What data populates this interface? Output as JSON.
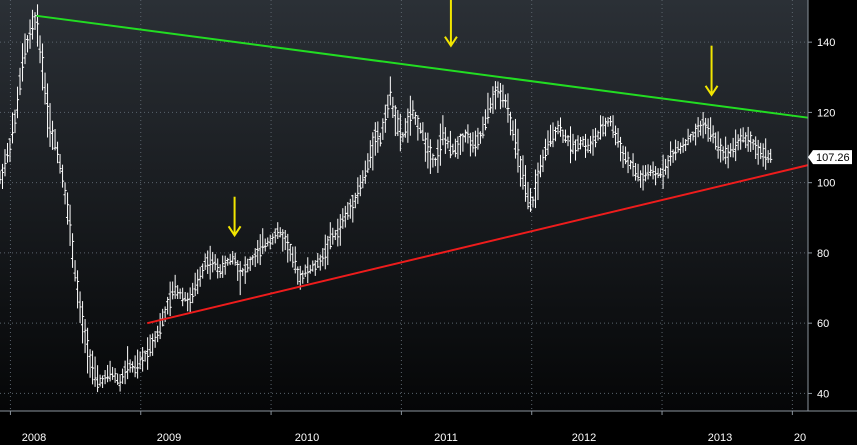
{
  "chart_data": {
    "type": "line",
    "style": "ohlc-bars",
    "title": "",
    "xlabel": "",
    "ylabel": "",
    "x_ticks": [
      "2008",
      "2009",
      "2010",
      "2011",
      "2012",
      "2013",
      "20"
    ],
    "y_ticks": [
      40,
      60,
      80,
      100,
      120,
      140
    ],
    "ylim": [
      35,
      152
    ],
    "xlim": [
      2007.92,
      2014.12
    ],
    "grid": true,
    "last_value": "107.26",
    "colors": {
      "background_top": "#2b3036",
      "background_bottom": "#050607",
      "grid": "#5a636c",
      "price": "#ffffff",
      "resistance": "#22dd22",
      "support": "#ee1c1c",
      "arrows": "#f2e600"
    },
    "series": [
      {
        "style": "ohlc",
        "points": [
          [
            2007.92,
            101
          ],
          [
            2007.98,
            108
          ],
          [
            2008.04,
            118
          ],
          [
            2008.09,
            133
          ],
          [
            2008.13,
            140
          ],
          [
            2008.17,
            145
          ],
          [
            2008.2,
            147
          ],
          [
            2008.23,
            138
          ],
          [
            2008.27,
            126
          ],
          [
            2008.31,
            115
          ],
          [
            2008.37,
            108
          ],
          [
            2008.42,
            98
          ],
          [
            2008.48,
            80
          ],
          [
            2008.54,
            62
          ],
          [
            2008.6,
            52
          ],
          [
            2008.66,
            43
          ],
          [
            2008.72,
            44
          ],
          [
            2008.78,
            46
          ],
          [
            2008.84,
            43
          ],
          [
            2008.9,
            48
          ],
          [
            2008.96,
            47
          ],
          [
            2009.02,
            50
          ],
          [
            2009.08,
            54
          ],
          [
            2009.14,
            58
          ],
          [
            2009.2,
            64
          ],
          [
            2009.26,
            70
          ],
          [
            2009.32,
            68
          ],
          [
            2009.38,
            66
          ],
          [
            2009.44,
            72
          ],
          [
            2009.5,
            78
          ],
          [
            2009.56,
            77
          ],
          [
            2009.62,
            75
          ],
          [
            2009.68,
            78
          ],
          [
            2009.72,
            79
          ],
          [
            2009.76,
            74
          ],
          [
            2009.82,
            76
          ],
          [
            2009.88,
            79
          ],
          [
            2009.94,
            82
          ],
          [
            2010.0,
            84
          ],
          [
            2010.06,
            86
          ],
          [
            2010.12,
            83
          ],
          [
            2010.18,
            77
          ],
          [
            2010.22,
            73
          ],
          [
            2010.28,
            75
          ],
          [
            2010.34,
            76
          ],
          [
            2010.4,
            79
          ],
          [
            2010.46,
            84
          ],
          [
            2010.52,
            86
          ],
          [
            2010.56,
            90
          ],
          [
            2010.6,
            92
          ],
          [
            2010.66,
            97
          ],
          [
            2010.72,
            102
          ],
          [
            2010.76,
            107
          ],
          [
            2010.8,
            114
          ],
          [
            2010.84,
            112
          ],
          [
            2010.88,
            120
          ],
          [
            2010.92,
            125
          ],
          [
            2010.96,
            118
          ],
          [
            2011.0,
            112
          ],
          [
            2011.04,
            116
          ],
          [
            2011.08,
            120
          ],
          [
            2011.14,
            116
          ],
          [
            2011.2,
            110
          ],
          [
            2011.26,
            106
          ],
          [
            2011.32,
            114
          ],
          [
            2011.38,
            109
          ],
          [
            2011.44,
            111
          ],
          [
            2011.5,
            114
          ],
          [
            2011.56,
            110
          ],
          [
            2011.62,
            114
          ],
          [
            2011.68,
            122
          ],
          [
            2011.74,
            126
          ],
          [
            2011.8,
            124
          ],
          [
            2011.86,
            114
          ],
          [
            2011.92,
            104
          ],
          [
            2011.96,
            96
          ],
          [
            2012.0,
            93
          ],
          [
            2012.04,
            100
          ],
          [
            2012.08,
            106
          ],
          [
            2012.14,
            112
          ],
          [
            2012.2,
            116
          ],
          [
            2012.26,
            113
          ],
          [
            2012.32,
            110
          ],
          [
            2012.38,
            112
          ],
          [
            2012.44,
            110
          ],
          [
            2012.5,
            113
          ],
          [
            2012.56,
            116
          ],
          [
            2012.6,
            118
          ],
          [
            2012.66,
            112
          ],
          [
            2012.72,
            107
          ],
          [
            2012.78,
            104
          ],
          [
            2012.84,
            101
          ],
          [
            2012.9,
            103
          ],
          [
            2012.96,
            102
          ],
          [
            2013.02,
            104
          ],
          [
            2013.08,
            108
          ],
          [
            2013.14,
            110
          ],
          [
            2013.2,
            112
          ],
          [
            2013.26,
            114
          ],
          [
            2013.32,
            117
          ],
          [
            2013.38,
            114
          ],
          [
            2013.44,
            110
          ],
          [
            2013.5,
            108
          ],
          [
            2013.56,
            111
          ],
          [
            2013.62,
            113
          ],
          [
            2013.68,
            112
          ],
          [
            2013.74,
            109
          ],
          [
            2013.8,
            108
          ],
          [
            2013.84,
            107.26
          ]
        ]
      },
      {
        "style": "trendline",
        "points": [
          [
            2008.2,
            147.5
          ],
          [
            2014.12,
            118.5
          ]
        ]
      },
      {
        "style": "trendline",
        "points": [
          [
            2009.05,
            60
          ],
          [
            2014.12,
            105
          ]
        ]
      }
    ],
    "annotations": [
      {
        "type": "arrow",
        "x": 2009.72,
        "y_top": 96,
        "y_tip": 85
      },
      {
        "type": "arrow",
        "x": 2011.38,
        "y_top": 162,
        "y_tip": 139
      },
      {
        "type": "arrow",
        "x": 2013.38,
        "y_top": 139,
        "y_tip": 125
      }
    ]
  }
}
